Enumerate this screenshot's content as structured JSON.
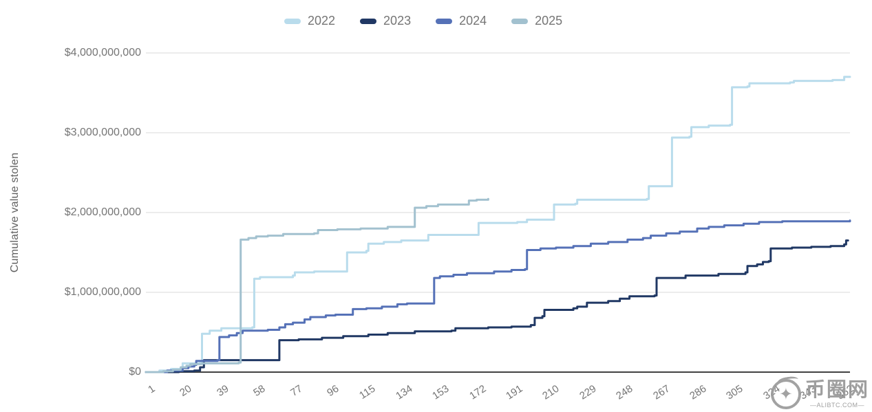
{
  "chart_data": {
    "type": "line",
    "line_style": "step-after",
    "title": "",
    "xlabel": "",
    "ylabel": "Cumulative value stolen",
    "legend_position": "top-center",
    "grid": true,
    "xlim": [
      1,
      365
    ],
    "ylim_billions": [
      0,
      4
    ],
    "x_ticks": [
      1,
      20,
      39,
      58,
      77,
      96,
      115,
      134,
      153,
      172,
      191,
      210,
      229,
      248,
      267,
      286,
      305,
      324,
      343,
      362
    ],
    "y_ticks": [
      {
        "value_billions": 0,
        "label": "$0"
      },
      {
        "value_billions": 1,
        "label": "$1,000,000,000"
      },
      {
        "value_billions": 2,
        "label": "$2,000,000,000"
      },
      {
        "value_billions": 3,
        "label": "$3,000,000,000"
      },
      {
        "value_billions": 4,
        "label": "$4,000,000,000"
      }
    ],
    "values_unit": "USD billions (cumulative value stolen by day of year)",
    "series": [
      {
        "name": "2022",
        "color": "#b9dcec",
        "points": [
          [
            1,
            0
          ],
          [
            8,
            0.02
          ],
          [
            14,
            0.04
          ],
          [
            19,
            0.05
          ],
          [
            20,
            0.11
          ],
          [
            29,
            0.12
          ],
          [
            30,
            0.48
          ],
          [
            34,
            0.52
          ],
          [
            40,
            0.55
          ],
          [
            56,
            0.56
          ],
          [
            57,
            1.17
          ],
          [
            60,
            1.19
          ],
          [
            77,
            1.21
          ],
          [
            78,
            1.25
          ],
          [
            88,
            1.26
          ],
          [
            104,
            1.26
          ],
          [
            105,
            1.5
          ],
          [
            115,
            1.52
          ],
          [
            116,
            1.61
          ],
          [
            124,
            1.63
          ],
          [
            133,
            1.65
          ],
          [
            146,
            1.65
          ],
          [
            147,
            1.72
          ],
          [
            172,
            1.72
          ],
          [
            173,
            1.87
          ],
          [
            193,
            1.88
          ],
          [
            198,
            1.91
          ],
          [
            211,
            1.91
          ],
          [
            212,
            2.1
          ],
          [
            223,
            2.11
          ],
          [
            224,
            2.16
          ],
          [
            260,
            2.17
          ],
          [
            261,
            2.33
          ],
          [
            272,
            2.33
          ],
          [
            273,
            2.94
          ],
          [
            282,
            2.95
          ],
          [
            283,
            3.07
          ],
          [
            292,
            3.09
          ],
          [
            303,
            3.1
          ],
          [
            304,
            3.57
          ],
          [
            312,
            3.58
          ],
          [
            313,
            3.62
          ],
          [
            334,
            3.63
          ],
          [
            336,
            3.65
          ],
          [
            356,
            3.66
          ],
          [
            362,
            3.7
          ],
          [
            365,
            3.7
          ]
        ]
      },
      {
        "name": "2023",
        "color": "#203864",
        "points": [
          [
            1,
            0
          ],
          [
            18,
            0.01
          ],
          [
            26,
            0.02
          ],
          [
            29,
            0.06
          ],
          [
            31,
            0.15
          ],
          [
            69,
            0.15
          ],
          [
            70,
            0.4
          ],
          [
            80,
            0.41
          ],
          [
            92,
            0.43
          ],
          [
            103,
            0.45
          ],
          [
            116,
            0.47
          ],
          [
            126,
            0.49
          ],
          [
            140,
            0.51
          ],
          [
            159,
            0.52
          ],
          [
            161,
            0.55
          ],
          [
            178,
            0.56
          ],
          [
            190,
            0.57
          ],
          [
            200,
            0.59
          ],
          [
            202,
            0.68
          ],
          [
            206,
            0.7
          ],
          [
            207,
            0.78
          ],
          [
            222,
            0.8
          ],
          [
            224,
            0.82
          ],
          [
            229,
            0.87
          ],
          [
            240,
            0.89
          ],
          [
            246,
            0.92
          ],
          [
            251,
            0.95
          ],
          [
            264,
            0.96
          ],
          [
            265,
            1.18
          ],
          [
            280,
            1.21
          ],
          [
            297,
            1.23
          ],
          [
            311,
            1.25
          ],
          [
            312,
            1.33
          ],
          [
            317,
            1.35
          ],
          [
            320,
            1.38
          ],
          [
            323,
            1.39
          ],
          [
            324,
            1.55
          ],
          [
            335,
            1.56
          ],
          [
            345,
            1.57
          ],
          [
            355,
            1.58
          ],
          [
            362,
            1.6
          ],
          [
            363,
            1.65
          ],
          [
            364,
            1.65
          ]
        ]
      },
      {
        "name": "2024",
        "color": "#5571b7",
        "points": [
          [
            1,
            0
          ],
          [
            12,
            0.02
          ],
          [
            20,
            0.05
          ],
          [
            23,
            0.07
          ],
          [
            26,
            0.09
          ],
          [
            27,
            0.14
          ],
          [
            38,
            0.15
          ],
          [
            39,
            0.44
          ],
          [
            44,
            0.46
          ],
          [
            48,
            0.49
          ],
          [
            51,
            0.52
          ],
          [
            64,
            0.53
          ],
          [
            70,
            0.56
          ],
          [
            73,
            0.6
          ],
          [
            77,
            0.62
          ],
          [
            83,
            0.66
          ],
          [
            86,
            0.69
          ],
          [
            94,
            0.71
          ],
          [
            99,
            0.72
          ],
          [
            107,
            0.72
          ],
          [
            108,
            0.79
          ],
          [
            115,
            0.8
          ],
          [
            123,
            0.82
          ],
          [
            131,
            0.85
          ],
          [
            136,
            0.86
          ],
          [
            149,
            0.86
          ],
          [
            150,
            1.18
          ],
          [
            153,
            1.2
          ],
          [
            160,
            1.22
          ],
          [
            167,
            1.24
          ],
          [
            181,
            1.26
          ],
          [
            190,
            1.28
          ],
          [
            197,
            1.29
          ],
          [
            198,
            1.53
          ],
          [
            205,
            1.55
          ],
          [
            213,
            1.56
          ],
          [
            222,
            1.58
          ],
          [
            231,
            1.61
          ],
          [
            240,
            1.63
          ],
          [
            250,
            1.66
          ],
          [
            258,
            1.68
          ],
          [
            262,
            1.71
          ],
          [
            270,
            1.74
          ],
          [
            277,
            1.76
          ],
          [
            286,
            1.8
          ],
          [
            292,
            1.82
          ],
          [
            300,
            1.84
          ],
          [
            310,
            1.86
          ],
          [
            318,
            1.88
          ],
          [
            330,
            1.89
          ],
          [
            365,
            1.9
          ]
        ]
      },
      {
        "name": "2025",
        "color": "#a2c1cf",
        "points": [
          [
            1,
            0
          ],
          [
            10,
            0.01
          ],
          [
            15,
            0.03
          ],
          [
            19,
            0.06
          ],
          [
            22,
            0.08
          ],
          [
            24,
            0.1
          ],
          [
            30,
            0.11
          ],
          [
            49,
            0.12
          ],
          [
            50,
            1.66
          ],
          [
            54,
            1.68
          ],
          [
            58,
            1.7
          ],
          [
            64,
            1.71
          ],
          [
            72,
            1.73
          ],
          [
            88,
            1.74
          ],
          [
            90,
            1.78
          ],
          [
            100,
            1.79
          ],
          [
            112,
            1.8
          ],
          [
            126,
            1.82
          ],
          [
            139,
            1.82
          ],
          [
            140,
            2.06
          ],
          [
            146,
            2.08
          ],
          [
            152,
            2.1
          ],
          [
            167,
            2.1
          ],
          [
            168,
            2.15
          ],
          [
            172,
            2.16
          ],
          [
            178,
            2.17
          ]
        ]
      }
    ],
    "colors": {
      "gridline": "#d9d9d9",
      "axis_line": "#424242",
      "tick_text": "#757575",
      "axis_title_text": "#616161"
    }
  },
  "watermark": {
    "logo_text": "币圈网",
    "sub_text": "—ALIBTC.COM—",
    "symbol": "coin-star"
  }
}
